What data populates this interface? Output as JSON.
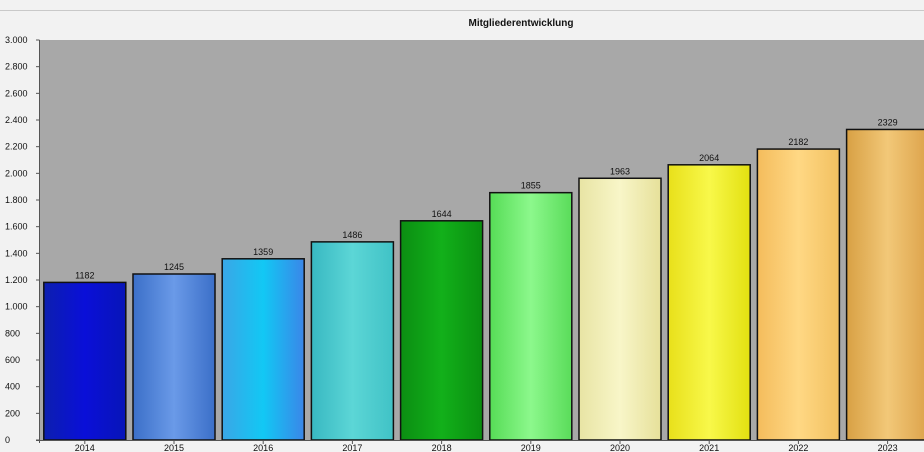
{
  "chart_data": {
    "type": "bar",
    "title": "Mitgliederentwicklung",
    "xlabel": "",
    "ylabel": "",
    "categories": [
      "2014",
      "2015",
      "2016",
      "2017",
      "2018",
      "2019",
      "2020",
      "2021",
      "2022",
      "2023"
    ],
    "values": [
      1182,
      1245,
      1359,
      1486,
      1644,
      1855,
      1963,
      2064,
      2182,
      2329
    ],
    "data_labels": [
      "1182",
      "1245",
      "1359",
      "1486",
      "1644",
      "1855",
      "1963",
      "2064",
      "2182",
      "2329"
    ],
    "ylim": [
      0,
      3000
    ],
    "yticks": [
      0,
      200,
      400,
      600,
      800,
      1000,
      1200,
      1400,
      1600,
      1800,
      2000,
      2200,
      2400,
      2600,
      2800,
      3000
    ],
    "ytick_labels": [
      "0",
      "200",
      "400",
      "600",
      "800",
      "1.000",
      "1.200",
      "1.400",
      "1.600",
      "1.800",
      "2.000",
      "2.200",
      "2.400",
      "2.600",
      "2.800",
      "3.000"
    ],
    "grid": false,
    "legend": "none",
    "plot_background": "#a8a8a8",
    "bar_gradients": [
      [
        "#0c1fb0",
        "#0a0fd8",
        "#0815b8"
      ],
      [
        "#3b6fc8",
        "#6a9ae8",
        "#3b6fc8"
      ],
      [
        "#3aa6e6",
        "#12c8f4",
        "#3a86e8"
      ],
      [
        "#38b8c2",
        "#5cd6d6",
        "#40c2c6"
      ],
      [
        "#0b8e12",
        "#12b01a",
        "#0a8e10"
      ],
      [
        "#56dc56",
        "#8cf88c",
        "#5adc5a"
      ],
      [
        "#e8e4a4",
        "#f8f6c8",
        "#e6e09a"
      ],
      [
        "#e8e01a",
        "#f8f84a",
        "#e2e010"
      ],
      [
        "#f4bc5c",
        "#ffd884",
        "#f2c060"
      ],
      [
        "#d8a044",
        "#f2c878",
        "#dca24a"
      ]
    ]
  }
}
